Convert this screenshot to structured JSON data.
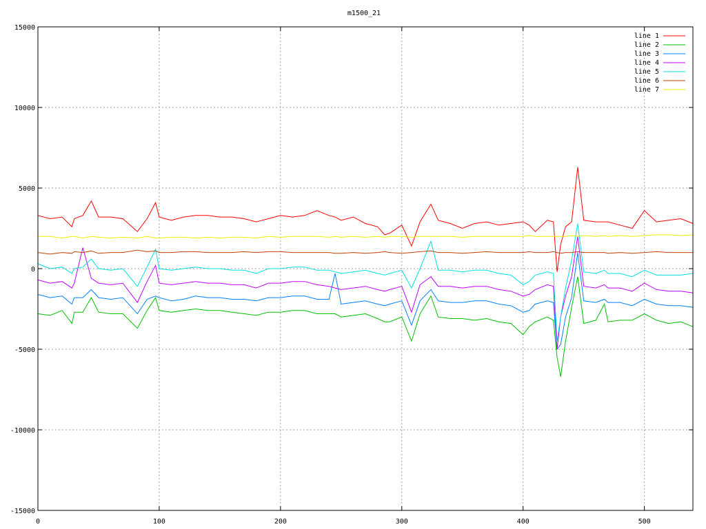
{
  "chart_data": {
    "type": "line",
    "title": "m1500_21",
    "xlabel": "",
    "ylabel": "",
    "xlim": [
      0,
      540
    ],
    "ylim": [
      -15000,
      15000
    ],
    "xticks": [
      0,
      100,
      200,
      300,
      400,
      500
    ],
    "yticks": [
      -15000,
      -10000,
      -5000,
      0,
      5000,
      10000,
      15000
    ],
    "grid": true,
    "legend_position": "top-right",
    "x": [
      0,
      10,
      20,
      28,
      30,
      37,
      44,
      50,
      60,
      70,
      82,
      90,
      97,
      100,
      110,
      120,
      130,
      140,
      150,
      160,
      170,
      180,
      190,
      200,
      210,
      220,
      230,
      240,
      245,
      250,
      260,
      270,
      280,
      286,
      290,
      300,
      308,
      315,
      324,
      330,
      340,
      350,
      360,
      370,
      380,
      390,
      400,
      405,
      410,
      420,
      425,
      428,
      431,
      435,
      440,
      445,
      450,
      460,
      467,
      470,
      480,
      490,
      500,
      510,
      520,
      530,
      540
    ],
    "series": [
      {
        "name": "line 1",
        "color": "#ff0000",
        "values": [
          3300,
          3100,
          3200,
          2600,
          3100,
          3300,
          4200,
          3200,
          3200,
          3100,
          2300,
          3100,
          4100,
          3200,
          3000,
          3200,
          3300,
          3300,
          3200,
          3200,
          3100,
          2900,
          3100,
          3300,
          3200,
          3300,
          3600,
          3300,
          3200,
          3000,
          3200,
          2800,
          2600,
          2100,
          2200,
          2700,
          1400,
          2900,
          4000,
          3000,
          2800,
          2500,
          2800,
          2900,
          2700,
          2800,
          2900,
          2700,
          2300,
          3000,
          2900,
          -200,
          1500,
          2600,
          2900,
          6300,
          3000,
          2900,
          2900,
          2900,
          2700,
          2500,
          3600,
          2900,
          3000,
          3100,
          2800
        ]
      },
      {
        "name": "line 2",
        "color": "#00c000",
        "values": [
          -2800,
          -2900,
          -2600,
          -3400,
          -2700,
          -2700,
          -1800,
          -2700,
          -2800,
          -2800,
          -3700,
          -2600,
          -1800,
          -2600,
          -2700,
          -2600,
          -2500,
          -2600,
          -2600,
          -2700,
          -2800,
          -2900,
          -2700,
          -2700,
          -2600,
          -2600,
          -2800,
          -2800,
          -2800,
          -3000,
          -2900,
          -2800,
          -3100,
          -3300,
          -3300,
          -3000,
          -4500,
          -2800,
          -1700,
          -3000,
          -3100,
          -3100,
          -3200,
          -3100,
          -3300,
          -3400,
          -4100,
          -3600,
          -3300,
          -3000,
          -3200,
          -5500,
          -6700,
          -4500,
          -2400,
          -500,
          -3400,
          -3200,
          -2200,
          -3300,
          -3200,
          -3200,
          -2800,
          -3200,
          -3400,
          -3300,
          -3600
        ]
      },
      {
        "name": "line 3",
        "color": "#0080ff",
        "values": [
          -1600,
          -1800,
          -1700,
          -2200,
          -1800,
          -1800,
          -1300,
          -1800,
          -1900,
          -1800,
          -2800,
          -1900,
          -1700,
          -1800,
          -2000,
          -1900,
          -1700,
          -1800,
          -1800,
          -1900,
          -1900,
          -2000,
          -1800,
          -1800,
          -1700,
          -1700,
          -1900,
          -1900,
          -300,
          -2200,
          -2100,
          -2000,
          -2200,
          -2300,
          -2200,
          -2000,
          -3500,
          -2000,
          -1300,
          -2000,
          -2100,
          -2100,
          -2000,
          -2000,
          -2200,
          -2300,
          -2700,
          -2600,
          -2200,
          -2000,
          -2100,
          -5000,
          -4700,
          -3000,
          -1800,
          1000,
          -2000,
          -2100,
          -1900,
          -2100,
          -2100,
          -2300,
          -1900,
          -2200,
          -2300,
          -2300,
          -2400
        ]
      },
      {
        "name": "line 4",
        "color": "#c000ff",
        "values": [
          -700,
          -900,
          -800,
          -1200,
          -900,
          1300,
          -600,
          -900,
          -1000,
          -900,
          -2100,
          -800,
          200,
          -900,
          -1000,
          -900,
          -800,
          -900,
          -900,
          -1000,
          -1000,
          -1200,
          -900,
          -900,
          -800,
          -800,
          -1000,
          -1100,
          -1200,
          -1300,
          -1200,
          -1100,
          -1300,
          -1400,
          -1300,
          -1100,
          -2700,
          -1000,
          -500,
          -1100,
          -1100,
          -1200,
          -1100,
          -1100,
          -1300,
          -1400,
          -1700,
          -1600,
          -1300,
          -1000,
          -1100,
          -5000,
          -3000,
          -1700,
          -500,
          2000,
          -1100,
          -1200,
          -1000,
          -1200,
          -1200,
          -1400,
          -900,
          -1300,
          -1400,
          -1400,
          -1500
        ]
      },
      {
        "name": "line 5",
        "color": "#00e0e0",
        "values": [
          300,
          0,
          100,
          -300,
          0,
          100,
          600,
          0,
          -100,
          0,
          -1100,
          100,
          1200,
          0,
          -100,
          0,
          100,
          0,
          0,
          -100,
          -100,
          -300,
          0,
          0,
          100,
          100,
          -100,
          -100,
          -200,
          -300,
          -200,
          -100,
          -300,
          -400,
          -300,
          -100,
          -1200,
          0,
          1700,
          -100,
          -100,
          -200,
          -100,
          -100,
          -300,
          -400,
          -1000,
          -800,
          -400,
          -200,
          -300,
          -4500,
          -3000,
          -1200,
          500,
          2800,
          -200,
          -300,
          -100,
          -300,
          -300,
          -500,
          -100,
          -400,
          -400,
          -400,
          -300
        ]
      },
      {
        "name": "line 6",
        "color": "#c04000",
        "values": [
          1000,
          900,
          1000,
          950,
          1050,
          1000,
          1100,
          950,
          1000,
          1000,
          1150,
          1050,
          1100,
          1000,
          1000,
          1050,
          1050,
          1000,
          1000,
          1000,
          1050,
          1000,
          1050,
          1050,
          1000,
          1000,
          1000,
          1000,
          950,
          950,
          1000,
          950,
          1000,
          1050,
          1000,
          950,
          1000,
          1050,
          1100,
          1000,
          1000,
          950,
          1000,
          1050,
          1000,
          1000,
          1000,
          1050,
          1000,
          1000,
          1050,
          1000,
          950,
          1000,
          1000,
          1050,
          1000,
          1000,
          1000,
          950,
          1000,
          950,
          1000,
          1050,
          1000,
          1000,
          1000
        ]
      },
      {
        "name": "line 7",
        "color": "#eeee00",
        "values": [
          2000,
          2000,
          1900,
          2000,
          2000,
          1900,
          2000,
          1950,
          1900,
          1950,
          1900,
          2000,
          1900,
          1900,
          1950,
          1950,
          1900,
          1950,
          1900,
          1950,
          1950,
          1900,
          2000,
          1950,
          2000,
          2000,
          2000,
          1950,
          2000,
          1950,
          2000,
          1950,
          2000,
          1950,
          2000,
          2000,
          1950,
          2000,
          2000,
          2000,
          2000,
          1950,
          2000,
          2000,
          2000,
          2000,
          2000,
          2050,
          2000,
          2000,
          2000,
          2000,
          2000,
          2000,
          2050,
          2000,
          2050,
          2000,
          2050,
          2000,
          2050,
          2000,
          2050,
          2100,
          2100,
          2050,
          2100
        ]
      }
    ]
  }
}
